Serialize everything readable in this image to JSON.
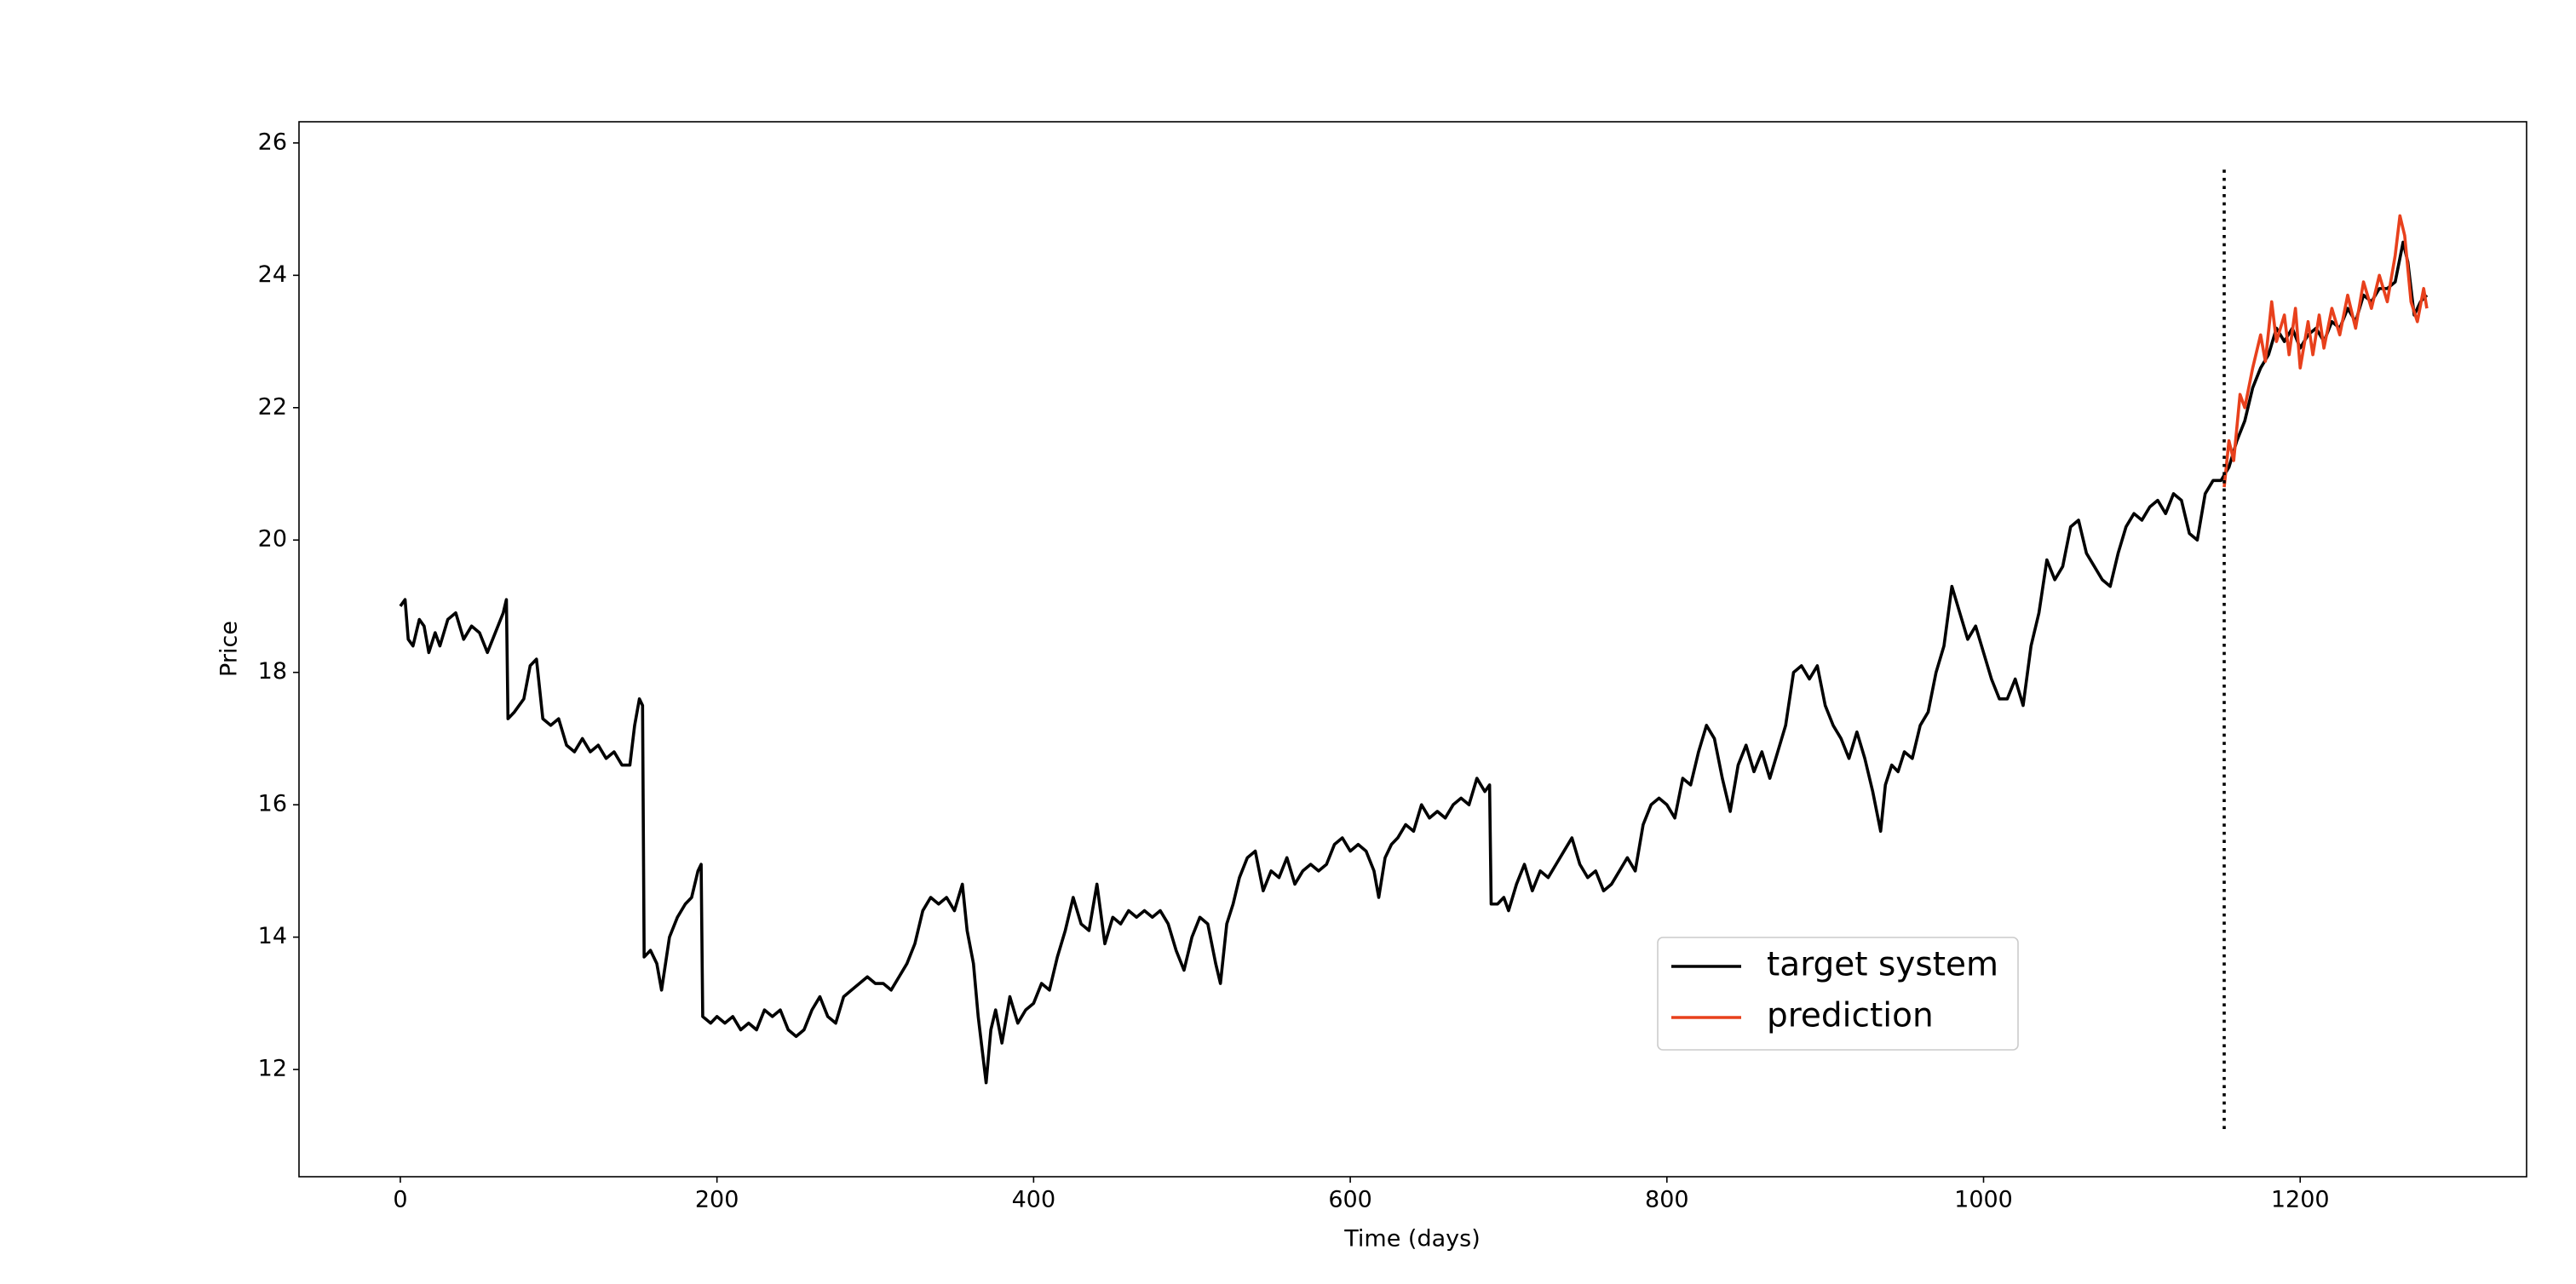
{
  "chart_data": {
    "type": "line",
    "xlabel": "Time (days)",
    "ylabel": "Price",
    "xlim": [
      -64,
      1343
    ],
    "ylim": [
      10.38,
      26.32
    ],
    "xticks": [
      0,
      200,
      400,
      600,
      800,
      1000,
      1200
    ],
    "yticks": [
      12,
      14,
      16,
      18,
      20,
      22,
      24,
      26
    ],
    "grid": false,
    "legend": "best",
    "vline": {
      "x": 1152,
      "y": [
        11.1,
        25.6
      ],
      "color": "#000000"
    },
    "series": [
      {
        "name": "target system",
        "color": "#000000",
        "x": [
          0,
          3,
          5,
          8,
          12,
          15,
          18,
          22,
          25,
          30,
          35,
          40,
          45,
          50,
          55,
          60,
          65,
          67,
          68,
          72,
          78,
          82,
          86,
          90,
          95,
          100,
          105,
          110,
          115,
          120,
          125,
          130,
          135,
          140,
          145,
          148,
          151,
          153,
          154,
          158,
          162,
          165,
          170,
          175,
          180,
          184,
          188,
          190,
          191,
          196,
          200,
          205,
          210,
          215,
          220,
          225,
          230,
          235,
          240,
          245,
          250,
          255,
          260,
          265,
          270,
          275,
          280,
          285,
          290,
          295,
          300,
          305,
          310,
          315,
          320,
          325,
          330,
          335,
          340,
          345,
          350,
          355,
          358,
          362,
          365,
          368,
          370,
          373,
          376,
          380,
          385,
          390,
          395,
          400,
          405,
          410,
          415,
          420,
          425,
          430,
          435,
          440,
          445,
          450,
          455,
          460,
          465,
          470,
          475,
          480,
          485,
          490,
          495,
          500,
          505,
          510,
          515,
          518,
          522,
          526,
          530,
          535,
          540,
          545,
          550,
          555,
          560,
          565,
          570,
          575,
          580,
          585,
          590,
          595,
          600,
          605,
          610,
          615,
          618,
          622,
          626,
          630,
          635,
          640,
          645,
          650,
          655,
          660,
          665,
          670,
          675,
          680,
          685,
          688,
          689,
          693,
          697,
          700,
          705,
          710,
          715,
          720,
          725,
          730,
          735,
          740,
          745,
          750,
          755,
          760,
          765,
          770,
          775,
          780,
          785,
          790,
          795,
          800,
          805,
          810,
          815,
          820,
          825,
          830,
          835,
          840,
          845,
          850,
          855,
          860,
          865,
          870,
          875,
          880,
          885,
          890,
          895,
          900,
          905,
          910,
          915,
          920,
          925,
          930,
          935,
          938,
          942,
          946,
          950,
          955,
          960,
          965,
          970,
          975,
          980,
          985,
          990,
          995,
          1000,
          1005,
          1010,
          1015,
          1020,
          1025,
          1030,
          1035,
          1040,
          1045,
          1050,
          1055,
          1060,
          1065,
          1070,
          1075,
          1080,
          1085,
          1090,
          1095,
          1100,
          1105,
          1110,
          1115,
          1120,
          1125,
          1130,
          1135,
          1140,
          1145,
          1150,
          1155,
          1160,
          1165,
          1170,
          1175,
          1180,
          1185,
          1190,
          1195,
          1200,
          1205,
          1210,
          1215,
          1220,
          1225,
          1230,
          1235,
          1240,
          1245,
          1250,
          1255,
          1260,
          1265,
          1268,
          1272,
          1276,
          1280
        ],
        "values": [
          19.0,
          19.1,
          18.5,
          18.4,
          18.8,
          18.7,
          18.3,
          18.6,
          18.4,
          18.8,
          18.9,
          18.5,
          18.7,
          18.6,
          18.3,
          18.6,
          18.9,
          19.1,
          17.3,
          17.4,
          17.6,
          18.1,
          18.2,
          17.3,
          17.2,
          17.3,
          16.9,
          16.8,
          17.0,
          16.8,
          16.9,
          16.7,
          16.8,
          16.6,
          16.6,
          17.2,
          17.6,
          17.5,
          13.7,
          13.8,
          13.6,
          13.2,
          14.0,
          14.3,
          14.5,
          14.6,
          15.0,
          15.1,
          12.8,
          12.7,
          12.8,
          12.7,
          12.8,
          12.6,
          12.7,
          12.6,
          12.9,
          12.8,
          12.9,
          12.6,
          12.5,
          12.6,
          12.9,
          13.1,
          12.8,
          12.7,
          13.1,
          13.2,
          13.3,
          13.4,
          13.3,
          13.3,
          13.2,
          13.4,
          13.6,
          13.9,
          14.4,
          14.6,
          14.5,
          14.6,
          14.4,
          14.8,
          14.1,
          13.6,
          12.8,
          12.2,
          11.8,
          12.6,
          12.9,
          12.4,
          13.1,
          12.7,
          12.9,
          13.0,
          13.3,
          13.2,
          13.7,
          14.1,
          14.6,
          14.2,
          14.1,
          14.8,
          13.9,
          14.3,
          14.2,
          14.4,
          14.3,
          14.4,
          14.3,
          14.4,
          14.2,
          13.8,
          13.5,
          14.0,
          14.3,
          14.2,
          13.6,
          13.3,
          14.2,
          14.5,
          14.9,
          15.2,
          15.3,
          14.7,
          15.0,
          14.9,
          15.2,
          14.8,
          15.0,
          15.1,
          15.0,
          15.1,
          15.4,
          15.5,
          15.3,
          15.4,
          15.3,
          15.0,
          14.6,
          15.2,
          15.4,
          15.5,
          15.7,
          15.6,
          16.0,
          15.8,
          15.9,
          15.8,
          16.0,
          16.1,
          16.0,
          16.4,
          16.2,
          16.3,
          14.5,
          14.5,
          14.6,
          14.4,
          14.8,
          15.1,
          14.7,
          15.0,
          14.9,
          15.1,
          15.3,
          15.5,
          15.1,
          14.9,
          15.0,
          14.7,
          14.8,
          15.0,
          15.2,
          15.0,
          15.7,
          16.0,
          16.1,
          16.0,
          15.8,
          16.4,
          16.3,
          16.8,
          17.2,
          17.0,
          16.4,
          15.9,
          16.6,
          16.9,
          16.5,
          16.8,
          16.4,
          16.8,
          17.2,
          18.0,
          18.1,
          17.9,
          18.1,
          17.5,
          17.2,
          17.0,
          16.7,
          17.1,
          16.7,
          16.2,
          15.6,
          16.3,
          16.6,
          16.5,
          16.8,
          16.7,
          17.2,
          17.4,
          18.0,
          18.4,
          19.3,
          18.9,
          18.5,
          18.7,
          18.3,
          17.9,
          17.6,
          17.6,
          17.9,
          17.5,
          18.4,
          18.9,
          19.7,
          19.4,
          19.6,
          20.2,
          20.3,
          19.8,
          19.6,
          19.4,
          19.3,
          19.8,
          20.2,
          20.4,
          20.3,
          20.5,
          20.6,
          20.4,
          20.7,
          20.6,
          20.1,
          20.0,
          20.7,
          20.9,
          20.9,
          21.1,
          21.5,
          21.8,
          22.3,
          22.6,
          22.8,
          23.2,
          23.0,
          23.2,
          22.9,
          23.1,
          23.2,
          23.0,
          23.3,
          23.2,
          23.5,
          23.3,
          23.7,
          23.6,
          23.8,
          23.8,
          23.9,
          24.5,
          24.2,
          23.4,
          23.6,
          23.7
        ]
      },
      {
        "name": "prediction",
        "color": "#e8401c",
        "x": [
          1152,
          1155,
          1158,
          1162,
          1165,
          1170,
          1175,
          1178,
          1182,
          1185,
          1190,
          1193,
          1197,
          1200,
          1205,
          1208,
          1212,
          1215,
          1220,
          1225,
          1230,
          1235,
          1240,
          1245,
          1250,
          1255,
          1260,
          1263,
          1266,
          1270,
          1274,
          1278,
          1280
        ],
        "values": [
          20.8,
          21.5,
          21.2,
          22.2,
          22.0,
          22.6,
          23.1,
          22.7,
          23.6,
          23.0,
          23.4,
          22.8,
          23.5,
          22.6,
          23.3,
          22.8,
          23.4,
          22.9,
          23.5,
          23.1,
          23.7,
          23.2,
          23.9,
          23.5,
          24.0,
          23.6,
          24.3,
          24.9,
          24.6,
          23.6,
          23.3,
          23.8,
          23.5
        ]
      }
    ]
  }
}
